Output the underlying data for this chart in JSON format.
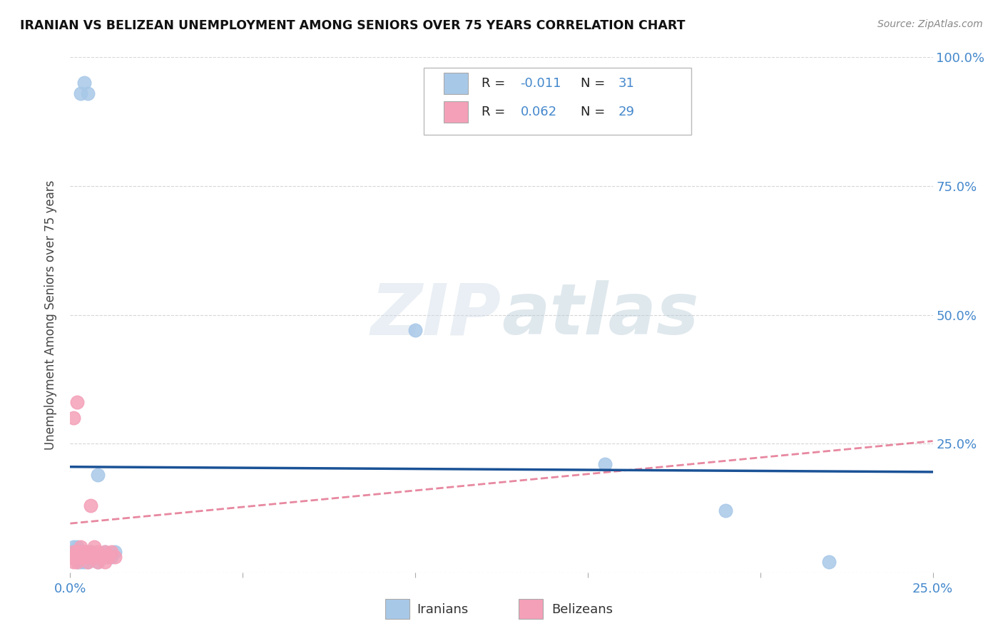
{
  "title": "IRANIAN VS BELIZEAN UNEMPLOYMENT AMONG SENIORS OVER 75 YEARS CORRELATION CHART",
  "source": "Source: ZipAtlas.com",
  "ylabel": "Unemployment Among Seniors over 75 years",
  "xlim": [
    0.0,
    0.25
  ],
  "ylim": [
    0.0,
    1.0
  ],
  "iranian_R": -0.011,
  "iranian_N": 31,
  "belizean_R": 0.062,
  "belizean_N": 29,
  "iranian_color": "#a8c8e8",
  "belizean_color": "#f4a0b8",
  "iranian_line_color": "#1a5296",
  "belizean_line_color": "#e06080",
  "background_color": "#ffffff",
  "grid_color": "#cccccc",
  "iranian_x": [
    0.001,
    0.001,
    0.001,
    0.002,
    0.002,
    0.002,
    0.002,
    0.003,
    0.003,
    0.003,
    0.003,
    0.004,
    0.004,
    0.004,
    0.005,
    0.005,
    0.005,
    0.006,
    0.006,
    0.007,
    0.008,
    0.008,
    0.009,
    0.01,
    0.01,
    0.012,
    0.013,
    0.1,
    0.155,
    0.19,
    0.22
  ],
  "iranian_y": [
    0.03,
    0.04,
    0.05,
    0.02,
    0.03,
    0.04,
    0.05,
    0.02,
    0.03,
    0.04,
    0.93,
    0.02,
    0.04,
    0.95,
    0.02,
    0.03,
    0.93,
    0.03,
    0.04,
    0.03,
    0.02,
    0.19,
    0.03,
    0.03,
    0.04,
    0.03,
    0.04,
    0.47,
    0.21,
    0.12,
    0.02
  ],
  "belizean_x": [
    0.0005,
    0.001,
    0.001,
    0.001,
    0.001,
    0.002,
    0.002,
    0.002,
    0.002,
    0.003,
    0.003,
    0.003,
    0.004,
    0.004,
    0.005,
    0.005,
    0.006,
    0.006,
    0.006,
    0.007,
    0.007,
    0.008,
    0.008,
    0.009,
    0.01,
    0.01,
    0.011,
    0.012,
    0.013
  ],
  "belizean_y": [
    0.03,
    0.02,
    0.03,
    0.04,
    0.3,
    0.02,
    0.03,
    0.04,
    0.33,
    0.03,
    0.04,
    0.05,
    0.03,
    0.04,
    0.02,
    0.03,
    0.03,
    0.04,
    0.13,
    0.03,
    0.05,
    0.02,
    0.04,
    0.03,
    0.02,
    0.04,
    0.03,
    0.04,
    0.03
  ],
  "iran_line_y0": 0.205,
  "iran_line_y1": 0.195,
  "bel_line_y0": 0.095,
  "bel_line_y1": 0.255
}
